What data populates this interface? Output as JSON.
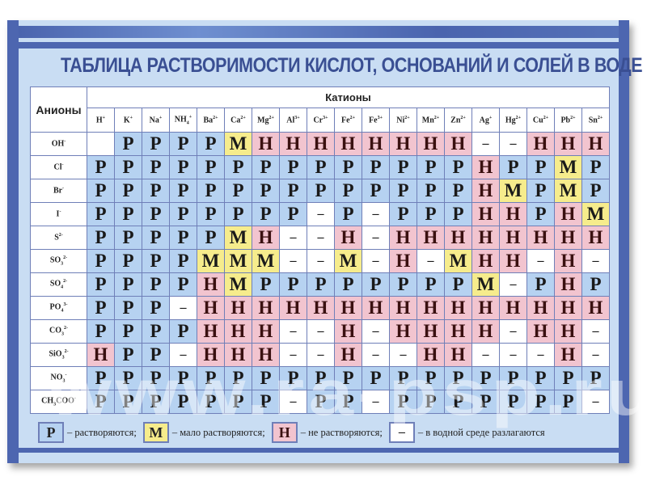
{
  "title": "ТАБЛИЦА РАСТВОРИМОСТИ КИСЛОТ, ОСНОВАНИЙ И СОЛЕЙ  В ВОДЕ",
  "anions_header": "Анионы",
  "cations_header": "Катионы",
  "watermark": "www.ra-psp.ru",
  "colors": {
    "soluble": "#b6d2f1",
    "slightly": "#f6ec8c",
    "insoluble": "#f2c4cf",
    "decomposes": "#ffffff",
    "frame": "#4d66b0",
    "title": "#3a4f93"
  },
  "cations": [
    {
      "base": "H",
      "sup": "+"
    },
    {
      "base": "K",
      "sup": "+"
    },
    {
      "base": "Na",
      "sup": "+"
    },
    {
      "base": "NH",
      "sub": "4",
      "sup": "+"
    },
    {
      "base": "Ba",
      "sup": "2+"
    },
    {
      "base": "Ca",
      "sup": "2+"
    },
    {
      "base": "Mg",
      "sup": "2+"
    },
    {
      "base": "Al",
      "sup": "3+"
    },
    {
      "base": "Cr",
      "sup": "3+"
    },
    {
      "base": "Fe",
      "sup": "2+"
    },
    {
      "base": "Fe",
      "sup": "3+"
    },
    {
      "base": "Ni",
      "sup": "2+"
    },
    {
      "base": "Mn",
      "sup": "2+"
    },
    {
      "base": "Zn",
      "sup": "2+"
    },
    {
      "base": "Ag",
      "sup": "+"
    },
    {
      "base": "Hg",
      "sup": "2+"
    },
    {
      "base": "Cu",
      "sup": "2+"
    },
    {
      "base": "Pb",
      "sup": "2+"
    },
    {
      "base": "Sn",
      "sup": "2+"
    }
  ],
  "rows": [
    {
      "anion": {
        "base": "OH",
        "sup": "-"
      },
      "values": [
        "",
        "Р",
        "Р",
        "Р",
        "Р",
        "М",
        "Н",
        "Н",
        "Н",
        "Н",
        "Н",
        "Н",
        "Н",
        "Н",
        "–",
        "–",
        "Н",
        "Н",
        "Н"
      ]
    },
    {
      "anion": {
        "base": "Cl",
        "sup": "-"
      },
      "values": [
        "Р",
        "Р",
        "Р",
        "Р",
        "Р",
        "Р",
        "Р",
        "Р",
        "Р",
        "Р",
        "Р",
        "Р",
        "Р",
        "Р",
        "Н",
        "Р",
        "Р",
        "М",
        "Р"
      ]
    },
    {
      "anion": {
        "base": "Br",
        "sup": "-"
      },
      "values": [
        "Р",
        "Р",
        "Р",
        "Р",
        "Р",
        "Р",
        "Р",
        "Р",
        "Р",
        "Р",
        "Р",
        "Р",
        "Р",
        "Р",
        "Н",
        "М",
        "Р",
        "М",
        "Р"
      ]
    },
    {
      "anion": {
        "base": "I",
        "sup": "-"
      },
      "values": [
        "Р",
        "Р",
        "Р",
        "Р",
        "Р",
        "Р",
        "Р",
        "Р",
        "–",
        "Р",
        "–",
        "Р",
        "Р",
        "Р",
        "Н",
        "Н",
        "Р",
        "Н",
        "М"
      ]
    },
    {
      "anion": {
        "base": "S",
        "sup": "2-"
      },
      "values": [
        "Р",
        "Р",
        "Р",
        "Р",
        "Р",
        "М",
        "Н",
        "–",
        "–",
        "Н",
        "–",
        "Н",
        "Н",
        "Н",
        "Н",
        "Н",
        "Н",
        "Н",
        "Н"
      ]
    },
    {
      "anion": {
        "base": "SO",
        "sub": "3",
        "sup": "2-"
      },
      "values": [
        "Р",
        "Р",
        "Р",
        "Р",
        "М",
        "М",
        "М",
        "–",
        "–",
        "М",
        "–",
        "Н",
        "–",
        "М",
        "Н",
        "Н",
        "–",
        "Н",
        "–"
      ]
    },
    {
      "anion": {
        "base": "SO",
        "sub": "4",
        "sup": "2-"
      },
      "values": [
        "Р",
        "Р",
        "Р",
        "Р",
        "Н",
        "М",
        "Р",
        "Р",
        "Р",
        "Р",
        "Р",
        "Р",
        "Р",
        "Р",
        "М",
        "–",
        "Р",
        "Н",
        "Р"
      ]
    },
    {
      "anion": {
        "base": "PO",
        "sub": "4",
        "sup": "3-"
      },
      "values": [
        "Р",
        "Р",
        "Р",
        "–",
        "Н",
        "Н",
        "Н",
        "Н",
        "Н",
        "Н",
        "Н",
        "Н",
        "Н",
        "Н",
        "Н",
        "Н",
        "Н",
        "Н",
        "Н"
      ]
    },
    {
      "anion": {
        "base": "CO",
        "sub": "3",
        "sup": "2-"
      },
      "values": [
        "Р",
        "Р",
        "Р",
        "Р",
        "Н",
        "Н",
        "Н",
        "–",
        "–",
        "Н",
        "–",
        "Н",
        "Н",
        "Н",
        "Н",
        "–",
        "Н",
        "Н",
        "–"
      ]
    },
    {
      "anion": {
        "base": "SiO",
        "sub": "3",
        "sup": "2-"
      },
      "values": [
        "Н",
        "Р",
        "Р",
        "–",
        "Н",
        "Н",
        "Н",
        "–",
        "–",
        "Н",
        "–",
        "–",
        "Н",
        "Н",
        "–",
        "–",
        "–",
        "Н",
        "–"
      ]
    },
    {
      "anion": {
        "base": "NO",
        "sub": "3",
        "sup": "-"
      },
      "values": [
        "Р",
        "Р",
        "Р",
        "Р",
        "Р",
        "Р",
        "Р",
        "Р",
        "Р",
        "Р",
        "Р",
        "Р",
        "Р",
        "Р",
        "Р",
        "Р",
        "Р",
        "Р",
        "Р"
      ]
    },
    {
      "anion": {
        "base": "CH",
        "sub": "3",
        "base2": "COO",
        "sup": "-"
      },
      "values": [
        "Р",
        "Р",
        "Р",
        "Р",
        "Р",
        "Р",
        "Р",
        "–",
        "Р",
        "Р",
        "–",
        "Р",
        "Р",
        "Р",
        "Р",
        "Р",
        "Р",
        "Р",
        "–"
      ]
    }
  ],
  "legend": [
    {
      "symbol": "Р",
      "text": "– растворяются;"
    },
    {
      "symbol": "М",
      "text": "– мало растворяются;"
    },
    {
      "symbol": "Н",
      "text": "– не растворяются;"
    },
    {
      "symbol": "–",
      "text": "– в водной среде разлагаются"
    }
  ]
}
